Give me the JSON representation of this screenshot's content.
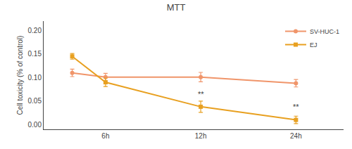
{
  "chart_data": {
    "type": "line",
    "title": "MTT",
    "y_label": "Cell toxicity (% of control)",
    "x": [
      -0.35,
      0,
      1,
      2
    ],
    "series": [
      {
        "name": "SV-HUC-1",
        "color": "#F0956A",
        "marker": "circle",
        "line_style": "solid",
        "values": [
          0.11,
          0.101,
          0.101,
          0.088
        ],
        "error": [
          0.008,
          0.008,
          0.01,
          0.008
        ]
      },
      {
        "name": "EJ",
        "color": "#E8A020",
        "marker": "square",
        "line_style": "solid",
        "values": [
          0.145,
          0.09,
          0.038,
          0.01
        ],
        "error": [
          0.006,
          0.009,
          0.012,
          0.008
        ]
      }
    ],
    "xlim": [
      -0.65,
      2.5
    ],
    "xticks": [
      {
        "value": 0,
        "label": "6h"
      },
      {
        "value": 1,
        "label": "12h"
      },
      {
        "value": 2,
        "label": "24h"
      }
    ],
    "ylim": [
      -0.01,
      0.22
    ],
    "yticks": [
      {
        "value": 0,
        "label": "0.00"
      },
      {
        "value": 0.05,
        "label": "0.05"
      },
      {
        "value": 0.1,
        "label": "0.10"
      },
      {
        "value": 0.15,
        "label": "0.15"
      },
      {
        "value": 0.2,
        "label": "0.20"
      }
    ],
    "annotations": [
      {
        "x": 1,
        "y": 0.053,
        "text": "**"
      },
      {
        "x": 2,
        "y": 0.026,
        "text": "**"
      }
    ],
    "grid": false,
    "legend": "upper right"
  }
}
